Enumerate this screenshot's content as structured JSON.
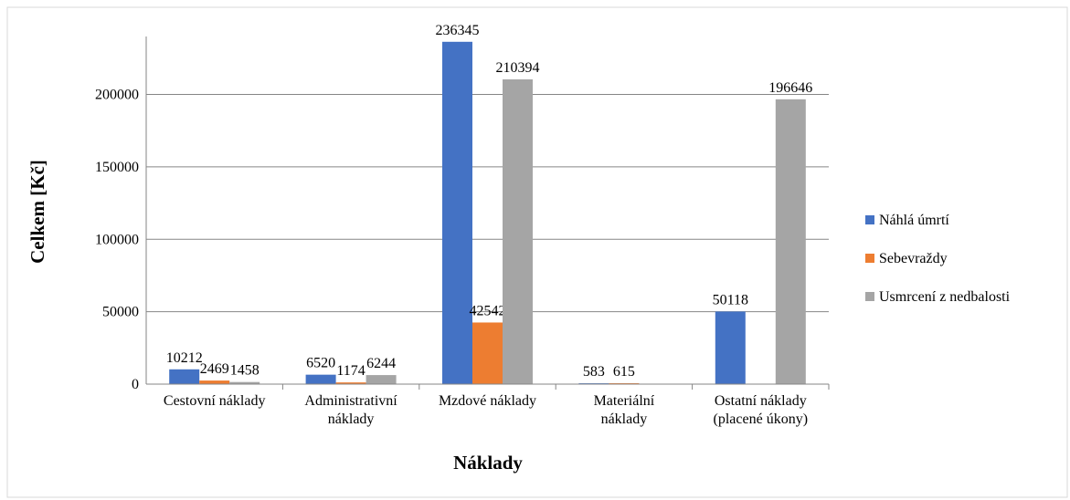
{
  "chart_data": {
    "type": "bar",
    "categories": [
      "Cestovní náklady",
      "Administrativní\nnáklady",
      "Mzdové náklady",
      "Materiální\nnáklady",
      "Ostatní náklady\n(placené úkony)"
    ],
    "series": [
      {
        "name": "Náhlá úmrtí",
        "color": "#4472c4",
        "values": [
          10212,
          6520,
          236345,
          583,
          50118
        ]
      },
      {
        "name": "Sebevraždy",
        "color": "#ed7d31",
        "values": [
          2469,
          1174,
          42542,
          615,
          null
        ]
      },
      {
        "name": "Usmrcení z nedbalosti",
        "color": "#a5a5a5",
        "values": [
          1458,
          6244,
          210394,
          null,
          196646
        ]
      }
    ],
    "ylabel": "Celkem [Kč]",
    "xlabel": "Náklady",
    "ylim": [
      0,
      240000
    ],
    "yticks": [
      0,
      50000,
      100000,
      150000,
      200000
    ],
    "grid": true,
    "legend": "right"
  }
}
